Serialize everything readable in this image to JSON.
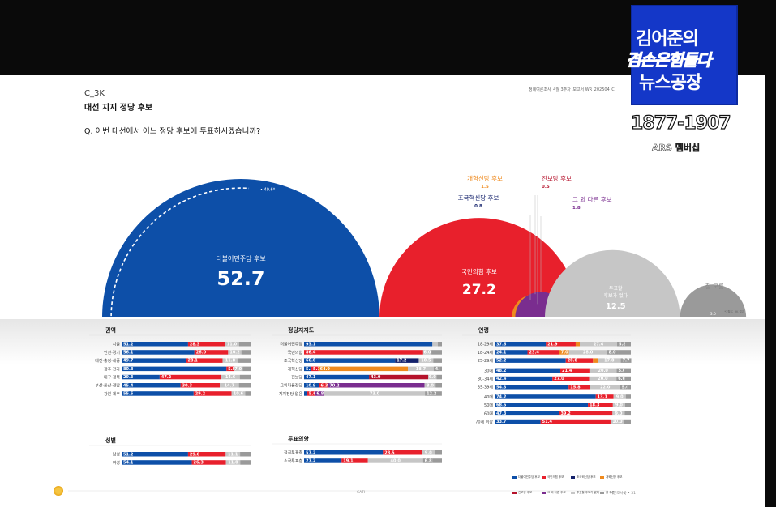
{
  "slide": {
    "code": "C_3K",
    "title": "대선 지지 정당 후보",
    "question": "Q. 이번 대선에서 어느 정당 후보에 투표하시겠습니까?",
    "doc_meta": "정례여론조사_4월 3주차_보고서   WR_202504_C"
  },
  "watermark": {
    "line1": "김어준의",
    "line2": "겸손은힘들다",
    "line3": "뉴스공장",
    "phone": "1877-1907",
    "ars": "ARS 멤버십"
  },
  "colors": {
    "dem": "#0d4fa8",
    "ppp": "#e8202c",
    "reform": "#ef8a1e",
    "rebuild": "#13216b",
    "progressive": "#b5122b",
    "other": "#7a2d8f",
    "none": "#c6c6c6",
    "dontknow": "#9a9a9a"
  },
  "chart_data": {
    "type": "bubble",
    "title": "대선 지지 정당 후보",
    "parties": [
      {
        "name": "더불어민주당 후보",
        "value": 52.7
      },
      {
        "name": "국민의힘 후보",
        "value": 27.2
      },
      {
        "name": "조국혁신당 후보",
        "value": 0.8
      },
      {
        "name": "개혁신당 후보",
        "value": 1.5
      },
      {
        "name": "진보당 후보",
        "value": 0.5
      },
      {
        "name": "그 외 다른 후보",
        "value": 1.8
      },
      {
        "name": "투표할 후보가 없다",
        "value": 12.5
      },
      {
        "name": "잘 모름",
        "value": 3.0
      }
    ],
    "previous_dem": "49.6*",
    "note": "*3월 C_3K 결과",
    "panels": [
      {
        "title": "권역",
        "rows": [
          {
            "label": "서울",
            "dem": 51.2,
            "ppp": 28.3,
            "none": 11.0
          },
          {
            "label": "인천·경기",
            "dem": 56.1,
            "ppp": 26.0,
            "none": 10.2
          },
          {
            "label": "대전·충청·세종",
            "dem": 49.7,
            "ppp": 28.1,
            "none": 11.8
          },
          {
            "label": "광주·전라",
            "dem": 80.8,
            "ppp": 5.5,
            "none": 7.0
          },
          {
            "label": "대구·경북",
            "dem": 29.3,
            "ppp": 47.2,
            "none": 14.6
          },
          {
            "label": "부산·울산·경남",
            "dem": 45.4,
            "ppp": 30.3,
            "none": 14.7
          },
          {
            "label": "강원·제주",
            "dem": 55.5,
            "ppp": 29.2,
            "none": 10.6
          }
        ]
      },
      {
        "title": "성별",
        "rows": [
          {
            "label": "남성",
            "dem": 51.2,
            "ppp": 29.0,
            "none": 11.1
          },
          {
            "label": "여성",
            "dem": 54.1,
            "ppp": 26.3,
            "none": 11.0
          }
        ]
      },
      {
        "title": "정당지지도",
        "rows": [
          {
            "label": "더불어민주당",
            "dem": 93.1,
            "ppp": 0,
            "none": 3.9
          },
          {
            "label": "국민의힘",
            "dem": 0,
            "ppp": 86.4,
            "none": 6.0
          },
          {
            "label": "조국혁신당",
            "dem": 66.0,
            "ppp": 0,
            "rebuild": 17.2,
            "none": 10.5
          },
          {
            "label": "개혁신당",
            "dem": 5.3,
            "ppp": 5.1,
            "reform": 64.9,
            "none": 18.7,
            "dontknow": 4.3
          },
          {
            "label": "진보당",
            "dem": 47.1,
            "ppp": 0,
            "progressive": 43.0,
            "none": 6.0
          },
          {
            "label": "그외다른정당",
            "dem": 10.9,
            "ppp": 6.3,
            "other": 70.2,
            "none": 8.0
          },
          {
            "label": "지지정당 없음",
            "dem": 2.3,
            "ppp": 5.6,
            "other": 6.8,
            "none": 73.0,
            "dontknow": 12.2
          }
        ]
      },
      {
        "title": "투표의향",
        "rows": [
          {
            "label": "적극투표층",
            "dem": 57.2,
            "ppp": 28.5,
            "none": 9.0
          },
          {
            "label": "소극투표층",
            "dem": 27.2,
            "ppp": 19.1,
            "none": 40.0,
            "dontknow": 6.8
          }
        ]
      },
      {
        "title": "연령",
        "rows": [
          {
            "label": "18-29세",
            "dem": 37.6,
            "ppp": 21.9,
            "reform": 3.0,
            "none": 27.4,
            "dontknow": 5.8
          },
          {
            "label": "18-24세",
            "dem": 24.1,
            "ppp": 23.4,
            "reform": 7.0,
            "none": 28.0,
            "dontknow": 8.0
          },
          {
            "label": "25-29세",
            "dem": 52.2,
            "ppp": 20.0,
            "reform": 3.4,
            "none": 17.0,
            "dontknow": 7.7
          },
          {
            "label": "30대",
            "dem": 48.2,
            "ppp": 21.4,
            "none": 20.0,
            "dontknow": 5.0
          },
          {
            "label": "30-34세",
            "dem": 42.4,
            "ppp": 27.0,
            "none": 20.0,
            "dontknow": 6.0
          },
          {
            "label": "35-39세",
            "dem": 54.3,
            "ppp": 15.8,
            "none": 22.0,
            "dontknow": 5.0
          },
          {
            "label": "40대",
            "dem": 74.2,
            "ppp": 13.1,
            "none": 9.0
          },
          {
            "label": "50대",
            "dem": 68.5,
            "ppp": 18.3,
            "none": 9.0
          },
          {
            "label": "60대",
            "dem": 47.3,
            "ppp": 39.2,
            "none": 9.0
          },
          {
            "label": "70세 이상",
            "dem": 33.7,
            "ppp": 51.4,
            "none": 10.0
          }
        ]
      }
    ]
  },
  "legend": [
    {
      "label": "더불어민주당 후보",
      "color": "#0d4fa8"
    },
    {
      "label": "국민의힘 후보",
      "color": "#e8202c"
    },
    {
      "label": "조국혁신당 후보",
      "color": "#13216b"
    },
    {
      "label": "개혁신당 후보",
      "color": "#ef8a1e"
    },
    {
      "label": "진보당 후보",
      "color": "#b5122b"
    },
    {
      "label": "그 외 다른 후보",
      "color": "#7a2d8f"
    },
    {
      "label": "투표할 후보가 없다",
      "color": "#c6c6c6"
    },
    {
      "label": "잘 모름",
      "color": "#9a9a9a"
    }
  ],
  "footer": {
    "center": "CATI",
    "right": "여론조사꽃 • 31"
  }
}
